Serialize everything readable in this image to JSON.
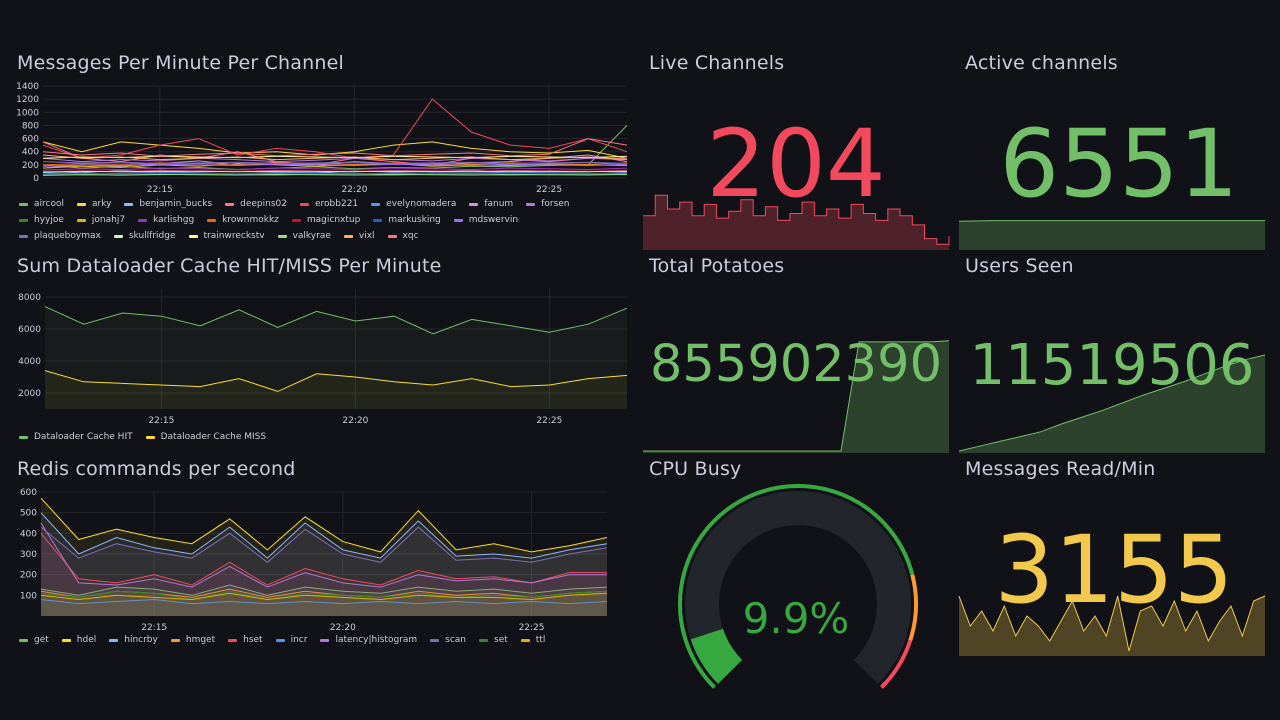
{
  "colors": {
    "background": "#111217",
    "text": "#ccccdc",
    "red": "#f2495c",
    "green": "#73bf69",
    "yellow": "#fade2a",
    "orange_yellow": "#f2c94c",
    "gauge_track": "#22252b",
    "gauge_green": "#37a83f",
    "gauge_orange": "#ff9830",
    "gauge_red": "#f2495c"
  },
  "panels": {
    "messages": {
      "title": "Messages Per Minute Per Channel",
      "y_ticks": [
        "1400",
        "1200",
        "1000",
        "800",
        "600",
        "400",
        "200",
        "0"
      ],
      "x_ticks": [
        "22:15",
        "22:20",
        "22:25"
      ]
    },
    "cache": {
      "title": "Sum Dataloader Cache HIT/MISS Per Minute",
      "y_ticks": [
        "8000",
        "6000",
        "4000",
        "2000"
      ],
      "x_ticks": [
        "22:15",
        "22:20",
        "22:25"
      ]
    },
    "redis": {
      "title": "Redis commands per second",
      "y_ticks": [
        "600",
        "500",
        "400",
        "300",
        "200",
        "100"
      ],
      "x_ticks": [
        "22:15",
        "22:20",
        "22:25"
      ]
    },
    "live_channels": {
      "title": "Live Channels",
      "value": "204"
    },
    "active_channels": {
      "title": "Active channels",
      "value": "6551"
    },
    "total_potatoes": {
      "title": "Total Potatoes",
      "value": "855902390"
    },
    "users_seen": {
      "title": "Users Seen",
      "value": "11519506"
    },
    "cpu_busy": {
      "title": "CPU Busy",
      "value": "9.9%",
      "percent": 9.9
    },
    "messages_read": {
      "title": "Messages Read/Min",
      "value": "3155"
    }
  },
  "chart_data": [
    {
      "type": "line",
      "title": "Messages Per Minute Per Channel",
      "ylim": [
        0,
        1400
      ],
      "x": [
        "22:12",
        "22:13",
        "22:14",
        "22:15",
        "22:16",
        "22:17",
        "22:18",
        "22:19",
        "22:20",
        "22:21",
        "22:22",
        "22:23",
        "22:24",
        "22:25",
        "22:26",
        "22:27"
      ],
      "x_ticks": [
        "22:15",
        "22:20",
        "22:25"
      ],
      "series": [
        {
          "name": "aircool",
          "color": "#73bf69",
          "values": [
            200,
            150,
            180,
            140,
            160,
            130,
            150,
            170,
            140,
            160,
            150,
            180,
            170,
            190,
            200,
            800
          ]
        },
        {
          "name": "arky",
          "color": "#fade2a",
          "values": [
            550,
            400,
            550,
            500,
            450,
            380,
            400,
            350,
            400,
            500,
            550,
            450,
            400,
            380,
            420,
            300
          ]
        },
        {
          "name": "benjamin_bucks",
          "color": "#8ab8ff",
          "values": [
            100,
            80,
            120,
            90,
            110,
            100,
            90,
            80,
            110,
            90,
            100,
            120,
            90,
            110,
            100,
            90
          ]
        },
        {
          "name": "deepins02",
          "color": "#ff7383",
          "values": [
            550,
            300,
            250,
            350,
            300,
            400,
            250,
            200,
            300,
            250,
            200,
            300,
            280,
            250,
            300,
            300
          ]
        },
        {
          "name": "erobb221",
          "color": "#f2495c",
          "values": [
            500,
            300,
            350,
            500,
            600,
            350,
            450,
            400,
            300,
            350,
            1200,
            700,
            500,
            450,
            600,
            400
          ]
        },
        {
          "name": "evelynomadera",
          "color": "#5794f2",
          "values": [
            80,
            60,
            70,
            90,
            80,
            60,
            70,
            80,
            70,
            60,
            80,
            70,
            90,
            80,
            70,
            60
          ]
        },
        {
          "name": "fanum",
          "color": "#ca95e5",
          "values": [
            150,
            200,
            180,
            220,
            260,
            200,
            240,
            200,
            250,
            220,
            200,
            230,
            250,
            300,
            350,
            250
          ]
        },
        {
          "name": "forsen",
          "color": "#b877d9",
          "values": [
            300,
            250,
            280,
            260,
            300,
            280,
            250,
            270,
            300,
            280,
            260,
            300,
            280,
            260,
            300,
            280
          ]
        },
        {
          "name": "hyyjoe",
          "color": "#37872d",
          "values": [
            50,
            60,
            40,
            50,
            60,
            50,
            40,
            60,
            50,
            40,
            60,
            50,
            40,
            50,
            60,
            50
          ]
        },
        {
          "name": "jonahj7",
          "color": "#e0b400",
          "values": [
            150,
            180,
            160,
            200,
            180,
            220,
            200,
            180,
            200,
            220,
            180,
            200,
            190,
            210,
            200,
            190
          ]
        },
        {
          "name": "karlishgg",
          "color": "#8f3bb8",
          "values": [
            120,
            140,
            130,
            150,
            140,
            130,
            150,
            140,
            130,
            150,
            140,
            130,
            150,
            140,
            130,
            150
          ]
        },
        {
          "name": "krownmokkz",
          "color": "#fa6400",
          "values": [
            200,
            220,
            210,
            230,
            220,
            210,
            230,
            220,
            210,
            230,
            220,
            210,
            230,
            220,
            210,
            230
          ]
        },
        {
          "name": "magicnxtup",
          "color": "#c4162a",
          "values": [
            100,
            110,
            105,
            115,
            110,
            105,
            115,
            110,
            105,
            115,
            110,
            105,
            115,
            110,
            105,
            115
          ]
        },
        {
          "name": "markusking",
          "color": "#1f60c4",
          "values": [
            60,
            70,
            65,
            75,
            70,
            65,
            75,
            70,
            65,
            75,
            70,
            65,
            75,
            70,
            65,
            75
          ]
        },
        {
          "name": "mdswervin",
          "color": "#a16efb",
          "values": [
            180,
            200,
            190,
            210,
            200,
            190,
            210,
            200,
            190,
            210,
            200,
            190,
            210,
            200,
            190,
            210
          ]
        },
        {
          "name": "plaqueboymax",
          "color": "#806eb7",
          "values": [
            250,
            230,
            240,
            220,
            230,
            240,
            220,
            230,
            240,
            220,
            230,
            240,
            220,
            230,
            240,
            220
          ]
        },
        {
          "name": "skullfridge",
          "color": "#c8f2c2",
          "values": [
            90,
            100,
            95,
            105,
            100,
            95,
            105,
            100,
            95,
            105,
            100,
            95,
            105,
            100,
            95,
            105
          ]
        },
        {
          "name": "trainwreckstv",
          "color": "#fff899",
          "values": [
            300,
            320,
            310,
            330,
            320,
            310,
            330,
            320,
            310,
            330,
            320,
            310,
            330,
            320,
            310,
            330
          ]
        },
        {
          "name": "valkyrae",
          "color": "#96d98d",
          "values": [
            40,
            50,
            45,
            55,
            50,
            45,
            55,
            50,
            45,
            55,
            50,
            45,
            55,
            50,
            45,
            55
          ]
        },
        {
          "name": "vixl",
          "color": "#ffb357",
          "values": [
            350,
            300,
            320,
            280,
            300,
            320,
            280,
            300,
            320,
            280,
            300,
            320,
            280,
            300,
            320,
            280
          ]
        },
        {
          "name": "xqc",
          "color": "#ff7383",
          "values": [
            400,
            350,
            380,
            330,
            360,
            380,
            340,
            360,
            380,
            340,
            360,
            380,
            340,
            360,
            600,
            500
          ]
        }
      ]
    },
    {
      "type": "area",
      "title": "Sum Dataloader Cache HIT/MISS Per Minute",
      "ylim": [
        1000,
        8500
      ],
      "x": [
        "22:12",
        "22:13",
        "22:14",
        "22:15",
        "22:16",
        "22:17",
        "22:18",
        "22:19",
        "22:20",
        "22:21",
        "22:22",
        "22:23",
        "22:24",
        "22:25",
        "22:26",
        "22:27"
      ],
      "x_ticks": [
        "22:15",
        "22:20",
        "22:25"
      ],
      "series": [
        {
          "name": "Dataloader Cache HIT",
          "color": "#73bf69",
          "values": [
            7400,
            6300,
            7000,
            6800,
            6200,
            7200,
            6100,
            7100,
            6500,
            6800,
            5700,
            6600,
            6200,
            5800,
            6300,
            7300
          ]
        },
        {
          "name": "Dataloader Cache MISS",
          "color": "#fade2a",
          "values": [
            3400,
            2700,
            2600,
            2500,
            2400,
            2900,
            2100,
            3200,
            3000,
            2700,
            2500,
            2900,
            2400,
            2500,
            2900,
            3100
          ]
        }
      ]
    },
    {
      "type": "area",
      "title": "Redis commands per second",
      "ylim": [
        0,
        600
      ],
      "x": [
        "22:12",
        "22:13",
        "22:14",
        "22:15",
        "22:16",
        "22:17",
        "22:18",
        "22:19",
        "22:20",
        "22:21",
        "22:22",
        "22:23",
        "22:24",
        "22:25",
        "22:26",
        "22:27"
      ],
      "x_ticks": [
        "22:15",
        "22:20",
        "22:25"
      ],
      "series": [
        {
          "name": "get",
          "color": "#73bf69",
          "values": [
            130,
            100,
            140,
            130,
            100,
            150,
            100,
            140,
            120,
            110,
            140,
            120,
            130,
            110,
            130,
            140
          ]
        },
        {
          "name": "hdel",
          "color": "#fade2a",
          "values": [
            570,
            370,
            420,
            380,
            350,
            470,
            320,
            480,
            360,
            310,
            510,
            320,
            350,
            310,
            340,
            380
          ]
        },
        {
          "name": "hincrby",
          "color": "#8ab8ff",
          "values": [
            500,
            300,
            380,
            330,
            300,
            430,
            280,
            450,
            320,
            280,
            460,
            290,
            300,
            280,
            320,
            350
          ]
        },
        {
          "name": "hmget",
          "color": "#ff9830",
          "values": [
            120,
            90,
            120,
            110,
            90,
            130,
            90,
            120,
            100,
            90,
            120,
            100,
            110,
            90,
            110,
            120
          ]
        },
        {
          "name": "hset",
          "color": "#f2495c",
          "values": [
            400,
            180,
            160,
            200,
            150,
            260,
            150,
            230,
            180,
            150,
            220,
            180,
            190,
            160,
            210,
            210
          ]
        },
        {
          "name": "incr",
          "color": "#5794f2",
          "values": [
            80,
            60,
            70,
            80,
            60,
            70,
            60,
            70,
            60,
            70,
            60,
            70,
            60,
            70,
            60,
            70
          ]
        },
        {
          "name": "latency|histogram",
          "color": "#b877d9",
          "values": [
            450,
            160,
            150,
            180,
            140,
            240,
            140,
            210,
            160,
            140,
            200,
            170,
            180,
            160,
            200,
            200
          ]
        },
        {
          "name": "scan",
          "color": "#806eb7",
          "values": [
            430,
            280,
            350,
            310,
            280,
            400,
            260,
            420,
            300,
            260,
            430,
            270,
            280,
            260,
            300,
            330
          ]
        },
        {
          "name": "set",
          "color": "#37872d",
          "values": [
            110,
            90,
            120,
            110,
            80,
            120,
            80,
            110,
            100,
            90,
            110,
            90,
            100,
            90,
            110,
            120
          ]
        },
        {
          "name": "ttl",
          "color": "#e0b400",
          "values": [
            100,
            80,
            100,
            90,
            80,
            110,
            80,
            100,
            90,
            80,
            100,
            90,
            90,
            80,
            100,
            110
          ]
        }
      ]
    },
    {
      "type": "area",
      "title": "Live Channels sparkline",
      "series": [
        {
          "name": "Live Channels",
          "color": "#f2495c",
          "values": [
            30,
            48,
            36,
            42,
            30,
            40,
            28,
            34,
            44,
            30,
            38,
            26,
            32,
            42,
            30,
            36,
            28,
            40,
            32,
            26,
            36,
            30,
            22,
            10,
            5,
            12
          ]
        }
      ]
    },
    {
      "type": "area",
      "title": "Active channels sparkline",
      "series": [
        {
          "name": "Active channels",
          "color": "#73bf69",
          "values": [
            6550,
            6551,
            6551,
            6551,
            6551,
            6551,
            6551,
            6551,
            6551,
            6551
          ]
        }
      ]
    },
    {
      "type": "area",
      "title": "Total Potatoes sparkline",
      "series": [
        {
          "name": "Total Potatoes",
          "color": "#73bf69",
          "values": [
            0,
            0,
            0,
            0,
            0,
            0,
            0,
            0,
            0,
            0,
            0,
            0,
            100,
            100,
            100,
            100,
            100,
            101
          ]
        }
      ]
    },
    {
      "type": "area",
      "title": "Users Seen sparkline",
      "series": [
        {
          "name": "Users Seen",
          "color": "#73bf69",
          "values": [
            0,
            5,
            10,
            15,
            20,
            28,
            35,
            42,
            50,
            58,
            65,
            72,
            80,
            88,
            95,
            100
          ]
        }
      ]
    },
    {
      "type": "area",
      "title": "Messages Read/Min sparkline",
      "series": [
        {
          "name": "Messages Read/Min",
          "color": "#f2c94c",
          "values": [
            60,
            30,
            45,
            25,
            50,
            20,
            40,
            30,
            15,
            35,
            55,
            25,
            40,
            20,
            60,
            5,
            45,
            50,
            30,
            55,
            25,
            45,
            15,
            35,
            50,
            20,
            55,
            60
          ]
        }
      ]
    }
  ]
}
